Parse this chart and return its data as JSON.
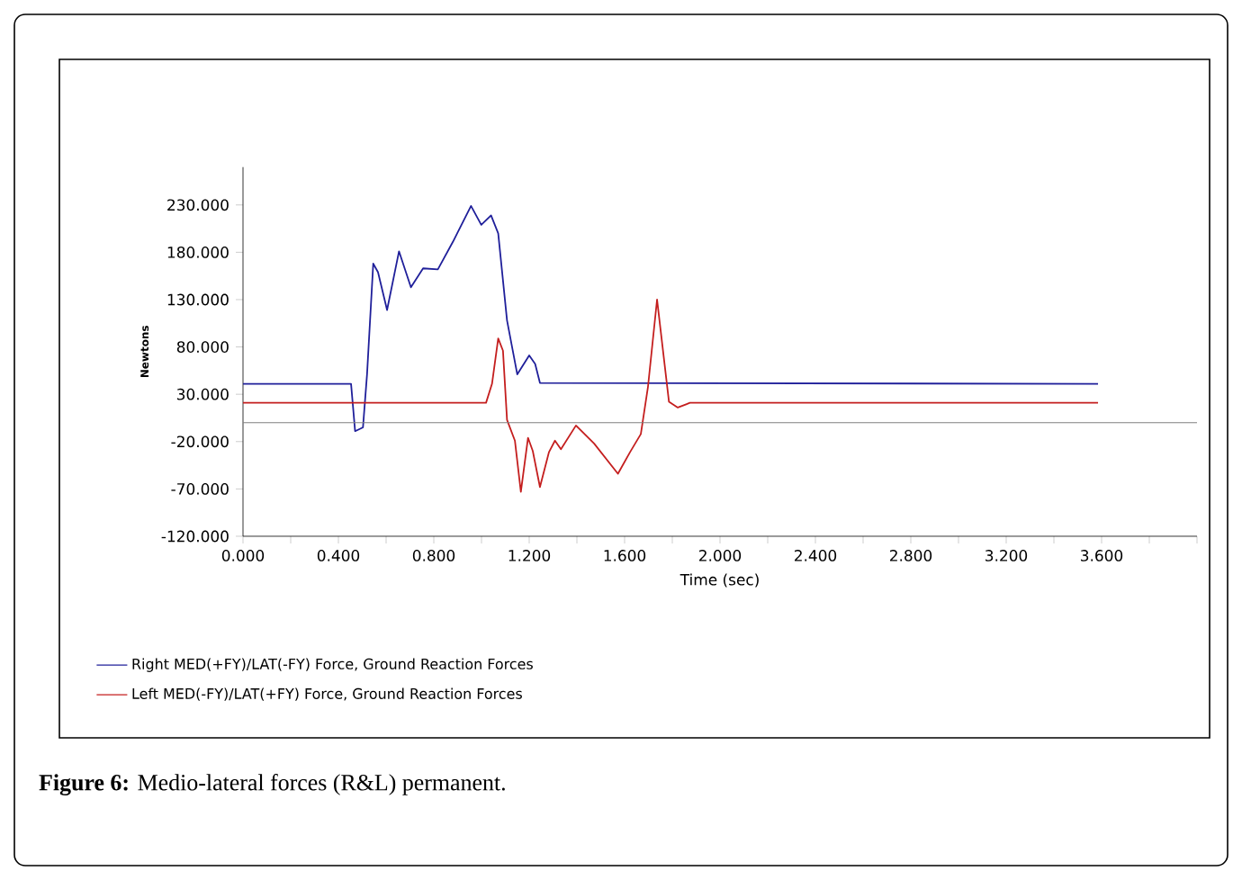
{
  "chart_data": {
    "type": "line",
    "xlabel": "Time (sec)",
    "ylabel": "Newtons",
    "annotations": [
      "**Figure 6:** Medio-lateral forces (R&L) permanent."
    ],
    "xlim": [
      0,
      4.0
    ],
    "ylim": [
      -120,
      270
    ],
    "xticks": [
      {
        "value": 0,
        "label": "0.000"
      },
      {
        "value": 0.2,
        "label": null
      },
      {
        "value": 0.4,
        "label": "0.400"
      },
      {
        "value": 0.6,
        "label": null
      },
      {
        "value": 0.8,
        "label": "0.800"
      },
      {
        "value": 1.0,
        "label": null
      },
      {
        "value": 1.2,
        "label": "1.200"
      },
      {
        "value": 1.4,
        "label": null
      },
      {
        "value": 1.6,
        "label": "1.600"
      },
      {
        "value": 1.8,
        "label": null
      },
      {
        "value": 2.0,
        "label": "2.000"
      },
      {
        "value": 2.2,
        "label": null
      },
      {
        "value": 2.4,
        "label": "2.400"
      },
      {
        "value": 2.6,
        "label": null
      },
      {
        "value": 2.8,
        "label": "2.800"
      },
      {
        "value": 3.0,
        "label": null
      },
      {
        "value": 3.2,
        "label": "3.200"
      },
      {
        "value": 3.4,
        "label": null
      },
      {
        "value": 3.6,
        "label": "3.600"
      },
      {
        "value": 3.8,
        "label": null
      },
      {
        "value": 4.0,
        "label": null
      }
    ],
    "yticks": [
      {
        "value": -120,
        "label": "-120.000"
      },
      {
        "value": -70,
        "label": "-70.000"
      },
      {
        "value": -20,
        "label": "-20.000"
      },
      {
        "value": 30,
        "label": "30.000"
      },
      {
        "value": 80,
        "label": "80.000"
      },
      {
        "value": 130,
        "label": "130.000"
      },
      {
        "value": 180,
        "label": "180.000"
      },
      {
        "value": 230,
        "label": "230.000"
      }
    ],
    "grid": false,
    "legend": "bottom",
    "marker": "none",
    "line_style": "solid",
    "ref_lines": [
      {
        "axis": "y",
        "value": 0,
        "color": "#808080"
      }
    ],
    "series": [
      {
        "name": "Right MED(+FY)/LAT(-FY) Force, Ground Reaction Forces",
        "color": "#1f1f9a",
        "x": [
          0,
          0.453,
          0.47,
          0.503,
          0.52,
          0.546,
          0.566,
          0.604,
          0.654,
          0.704,
          0.755,
          0.817,
          0.88,
          0.956,
          0.999,
          1.04,
          1.07,
          1.107,
          1.15,
          1.2,
          1.225,
          1.245,
          3.585
        ],
        "values": [
          41,
          41,
          -9,
          -5,
          51,
          168,
          159,
          119,
          181,
          143,
          163,
          162,
          191,
          229,
          209,
          219,
          200,
          108,
          51,
          71,
          62,
          42,
          41
        ]
      },
      {
        "name": "Left MED(-FY)/LAT(+FY) Force, Ground Reaction Forces",
        "color": "#c41e1e",
        "x": [
          0,
          1.019,
          1.044,
          1.07,
          1.09,
          1.107,
          1.14,
          1.165,
          1.195,
          1.215,
          1.245,
          1.283,
          1.308,
          1.333,
          1.396,
          1.472,
          1.572,
          1.623,
          1.668,
          1.698,
          1.736,
          1.761,
          1.786,
          1.823,
          1.874,
          3.585
        ],
        "values": [
          21,
          21,
          41,
          89,
          76,
          3,
          -19,
          -73,
          -16,
          -30,
          -68,
          -31,
          -19,
          -28,
          -3,
          -22,
          -54,
          -31,
          -12,
          38,
          130,
          76,
          22,
          16,
          21,
          21
        ]
      }
    ]
  }
}
